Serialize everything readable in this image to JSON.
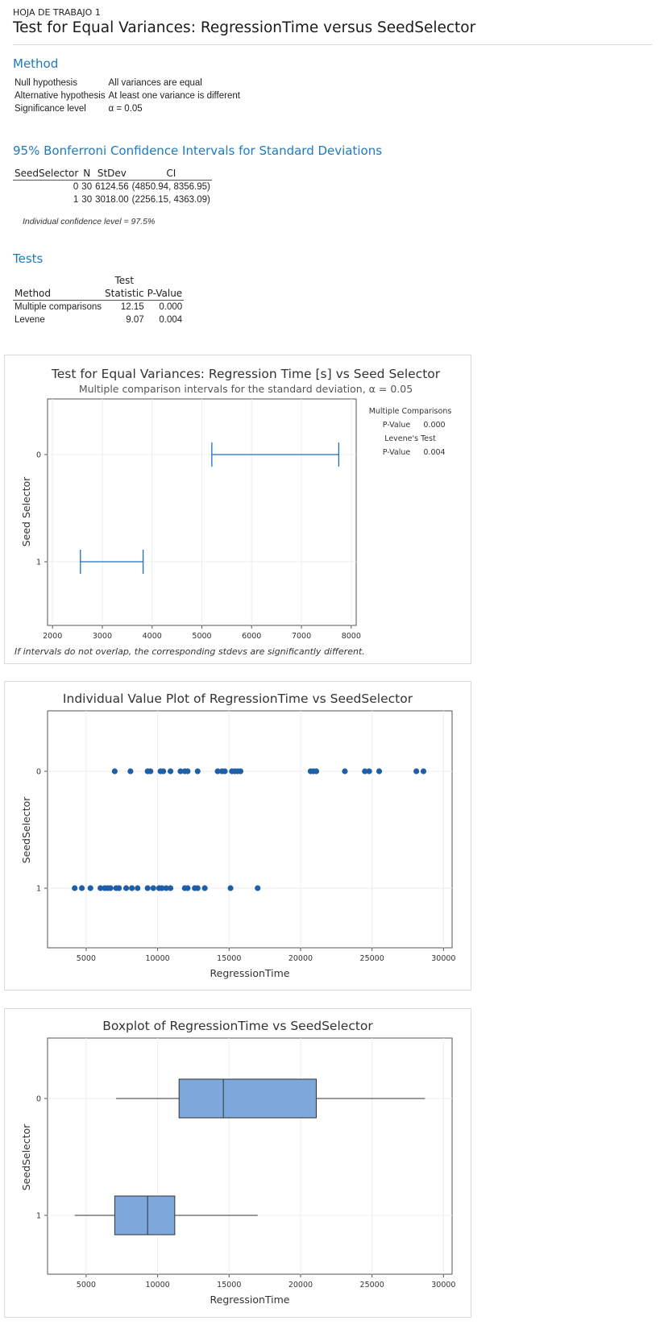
{
  "header": {
    "sheet": "HOJA DE TRABAJO 1",
    "title": "Test for Equal Variances: RegressionTime versus SeedSelector"
  },
  "method": {
    "heading": "Method",
    "rows": [
      {
        "label": "Null hypothesis",
        "value": "All variances are equal"
      },
      {
        "label": "Alternative hypothesis",
        "value": "At least one variance is different"
      },
      {
        "label": "Significance level",
        "value": "α = 0.05"
      }
    ]
  },
  "bonferroni": {
    "heading": "95% Bonferroni Confidence Intervals for Standard Deviations",
    "columns": [
      "SeedSelector",
      "N",
      "StDev",
      "CI"
    ],
    "rows": [
      {
        "seed": "0",
        "n": "30",
        "stdev": "6124.56",
        "ci": "(4850.94, 8356.95)"
      },
      {
        "seed": "1",
        "n": "30",
        "stdev": "3018.00",
        "ci": "(2256.15, 4363.09)"
      }
    ],
    "note": "Individual confidence level = 97.5%"
  },
  "tests": {
    "heading": "Tests",
    "header_top": "Test",
    "columns": [
      "Method",
      "Statistic",
      "P-Value"
    ],
    "rows": [
      {
        "method": "Multiple comparisons",
        "statistic": "12.15",
        "pvalue": "0.000"
      },
      {
        "method": "Levene",
        "statistic": "9.07",
        "pvalue": "0.004"
      }
    ]
  },
  "chart_data": [
    {
      "type": "interval",
      "title": "Test for Equal Variances: Regression Time [s] vs Seed Selector",
      "subtitle": "Multiple comparison intervals for the standard deviation, α = 0.05",
      "xlabel": "",
      "ylabel": "Seed Selector",
      "xlim": [
        1900,
        8100
      ],
      "xticks": [
        2000,
        3000,
        4000,
        5000,
        6000,
        7000,
        8000
      ],
      "categories": [
        "0",
        "1"
      ],
      "intervals": [
        {
          "category": "0",
          "low": 5200,
          "high": 7750
        },
        {
          "category": "1",
          "low": 2560,
          "high": 3820
        }
      ],
      "color": "#1f6fbf",
      "side_panel": {
        "mc_title": "Multiple Comparisons",
        "mc_label": "P-Value",
        "mc_value": "0.000",
        "lev_title": "Levene's Test",
        "lev_label": "P-Value",
        "lev_value": "0.004"
      },
      "footnote": "If intervals do not overlap, the corresponding stdevs are significantly different."
    },
    {
      "type": "scatter",
      "title": "Individual Value Plot of RegressionTime vs SeedSelector",
      "xlabel": "RegressionTime",
      "ylabel": "SeedSelector",
      "xlim": [
        2300,
        30600
      ],
      "xticks": [
        5000,
        10000,
        15000,
        20000,
        25000,
        30000
      ],
      "categories": [
        "0",
        "1"
      ],
      "series": [
        {
          "category": "0",
          "values": [
            7000,
            8100,
            9300,
            9500,
            10200,
            10400,
            10900,
            11600,
            11900,
            12100,
            12800,
            14200,
            14500,
            14700,
            15200,
            15400,
            15600,
            15800,
            20700,
            20900,
            21100,
            23100,
            24500,
            24800,
            25500,
            28100,
            28600
          ]
        },
        {
          "category": "1",
          "values": [
            4200,
            4700,
            5300,
            6000,
            6300,
            6500,
            6700,
            7100,
            7300,
            7800,
            8200,
            8600,
            9300,
            9700,
            10100,
            10300,
            10600,
            10900,
            11900,
            12100,
            12600,
            12800,
            13300,
            15100,
            17000
          ]
        }
      ],
      "color": "#1f5fa8"
    },
    {
      "type": "box",
      "title": "Boxplot of RegressionTime vs SeedSelector",
      "xlabel": "RegressionTime",
      "ylabel": "SeedSelector",
      "xlim": [
        2300,
        30600
      ],
      "xticks": [
        5000,
        10000,
        15000,
        20000,
        25000,
        30000
      ],
      "categories": [
        "0",
        "1"
      ],
      "boxes": [
        {
          "category": "0",
          "min": 7100,
          "q1": 11500,
          "median": 14600,
          "q3": 21100,
          "max": 28700
        },
        {
          "category": "1",
          "min": 4200,
          "q1": 7000,
          "median": 9300,
          "q3": 11200,
          "max": 17000
        }
      ],
      "fill": "#7ea7db"
    }
  ]
}
